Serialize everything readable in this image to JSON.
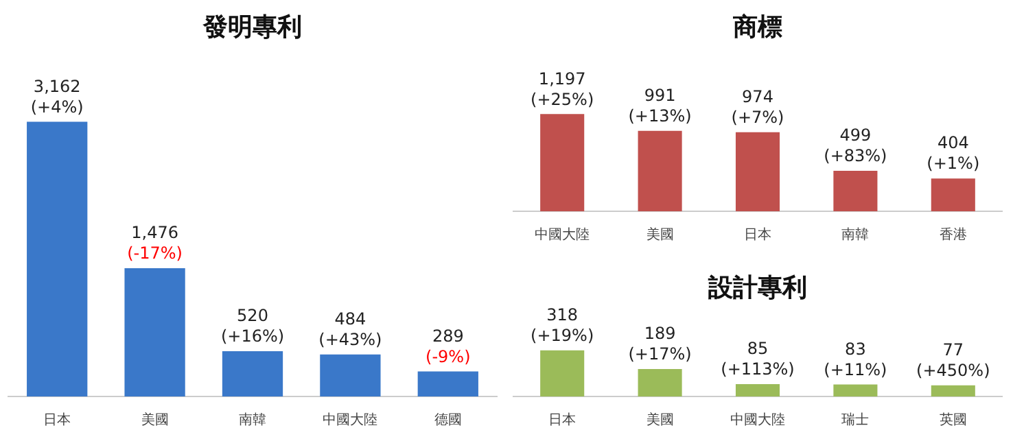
{
  "chart_data": [
    {
      "type": "bar",
      "title": "發明專利",
      "categories": [
        "日本",
        "美國",
        "南韓",
        "中國大陸",
        "德國"
      ],
      "values": [
        3162,
        1476,
        520,
        484,
        289
      ],
      "color": "#3a78c9",
      "value_labels": [
        "3,162\n(+4%)",
        "1,476\n(-17%)",
        "520\n(+16%)",
        "484\n(+43%)",
        "289\n(-9%)"
      ]
    },
    {
      "type": "bar",
      "title": "商標",
      "categories": [
        "中國大陸",
        "美國",
        "日本",
        "南韓",
        "香港"
      ],
      "values": [
        1197,
        991,
        974,
        499,
        404
      ],
      "color": "#c0504d",
      "value_labels": [
        "1,197\n(+25%)",
        "991\n(+13%)",
        "974\n(+7%)",
        "499\n(+83%)",
        "404\n(+1%)"
      ]
    },
    {
      "type": "bar",
      "title": "設計專利",
      "categories": [
        "日本",
        "美國",
        "中國大陸",
        "瑞士",
        "英國"
      ],
      "values": [
        318,
        189,
        85,
        83,
        77
      ],
      "color": "#9bbb59",
      "value_labels": [
        "318\n(+19%)",
        "189\n(+17%)",
        "85\n(+113%)",
        "83\n(+11%)",
        "77\n(+450%)"
      ]
    }
  ]
}
